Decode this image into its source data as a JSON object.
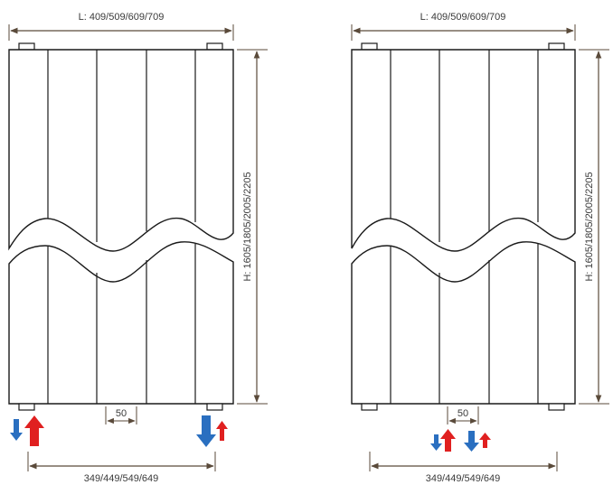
{
  "diagrams": [
    {
      "name": "left-radiator",
      "width_label": "L: 409/509/609/709",
      "height_label": "H: 1605/1805/2005/2205",
      "pipe_spacing_label": "50",
      "connection_span_label": "349/449/549/649"
    },
    {
      "name": "right-radiator",
      "width_label": "L: 409/509/609/709",
      "height_label": "H: 1605/1805/2005/2205",
      "pipe_spacing_label": "50",
      "connection_span_label": "349/449/549/649"
    }
  ],
  "colors": {
    "dimension_line": "#5a4a3a",
    "outline": "#1a1a1a",
    "flow_return": "#2a6fc0",
    "flow_supply": "#e02020"
  },
  "icons": [
    "arrow-down-blue-icon",
    "arrow-up-red-icon"
  ]
}
